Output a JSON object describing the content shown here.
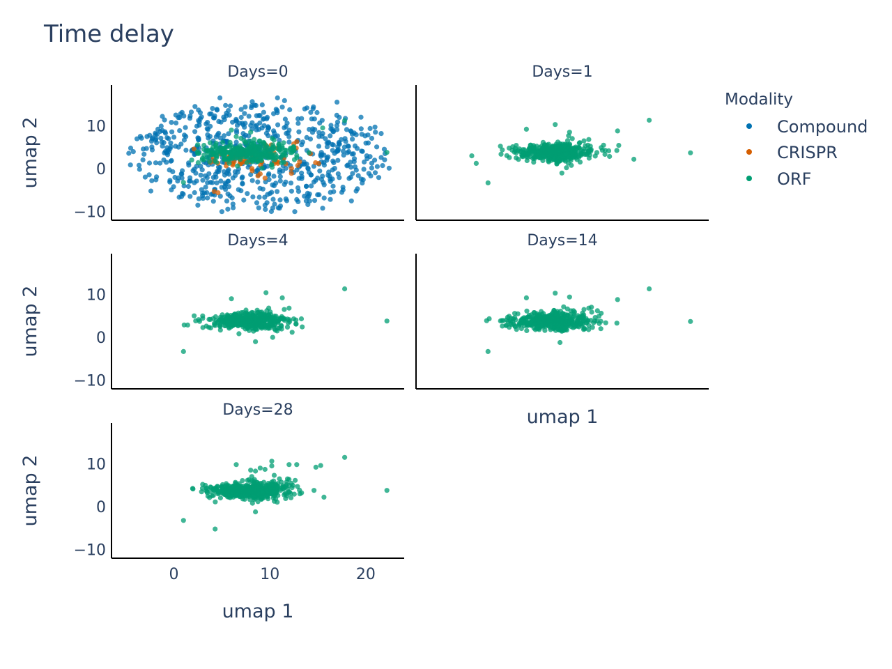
{
  "chart_data": {
    "type": "scatter",
    "title": "Time delay",
    "xlabel": "umap 1",
    "ylabel": "umap 2",
    "xlim": [
      -6.5,
      24
    ],
    "ylim": [
      -12,
      19.5
    ],
    "xticks": [
      0,
      10,
      20
    ],
    "yticks": [
      10,
      0,
      -10
    ],
    "tick_labels": {
      "x": [
        "0",
        "10",
        "20"
      ],
      "y": [
        "10",
        "0",
        "−10"
      ]
    },
    "legend": {
      "title": "Modality",
      "placement": "top-right",
      "entries": [
        {
          "name": "Compound",
          "color": "#0072b2"
        },
        {
          "name": "CRISPR",
          "color": "#d55e00"
        },
        {
          "name": "ORF",
          "color": "#009e73"
        }
      ]
    },
    "panels": [
      {
        "title": "Days=0",
        "series": [
          {
            "name": "Compound",
            "cloud": {
              "cx": 9,
              "cy": 3,
              "sx": 6.5,
              "sy": 5.5,
              "n": 650
            },
            "points": [
              [
                -4.5,
                4.8
              ],
              [
                -2.8,
                7.5
              ],
              [
                -2.2,
                7.2
              ],
              [
                -1.2,
                12.2
              ],
              [
                0.2,
                12.5
              ],
              [
                2.2,
                14.5
              ],
              [
                4.8,
                16.5
              ],
              [
                10.8,
                16.5
              ],
              [
                14.5,
                14
              ],
              [
                17,
                15.5
              ],
              [
                19.5,
                12
              ],
              [
                21,
                8.5
              ],
              [
                21.6,
                8.2
              ],
              [
                22,
                3.5
              ],
              [
                21.2,
                0.5
              ],
              [
                -2.3,
                -2.8
              ],
              [
                -2.4,
                -5.2
              ],
              [
                0.8,
                -6.5
              ],
              [
                2.5,
                -8.5
              ],
              [
                5,
                -10
              ],
              [
                9.5,
                -8.5
              ],
              [
                12.6,
                -10
              ],
              [
                15.5,
                -9.2
              ],
              [
                17.5,
                -5.5
              ],
              [
                19,
                -5.2
              ],
              [
                18.5,
                -7.5
              ]
            ]
          },
          {
            "name": "CRISPR",
            "cloud": {
              "cx": 7.8,
              "cy": 2.2,
              "sx": 2.5,
              "sy": 1.6,
              "n": 70
            },
            "points": [
              [
                4.2,
                -5.3
              ],
              [
                4.6,
                -5.6
              ],
              [
                9,
                -1.2
              ],
              [
                9.5,
                -2.2
              ],
              [
                12.5,
                5.8
              ],
              [
                12.8,
                6.3
              ],
              [
                3.8,
                1.5
              ],
              [
                2.1,
                4.6
              ]
            ]
          },
          {
            "name": "ORF",
            "cloud": {
              "cx": 7.8,
              "cy": 3.8,
              "sx": 2.4,
              "sy": 1.5,
              "n": 300
            },
            "points": [
              [
                6,
                9
              ],
              [
                8,
                8.5
              ],
              [
                12.5,
                5
              ],
              [
                15.5,
                9.5
              ],
              [
                17.8,
                11.2
              ],
              [
                22.2,
                3.8
              ],
              [
                1,
                -3.2
              ],
              [
                6.5,
                7.5
              ]
            ]
          }
        ]
      },
      {
        "title": "Days=1",
        "series": [
          {
            "name": "ORF",
            "cloud": {
              "cx": 8,
              "cy": 3.8,
              "sx": 2.1,
              "sy": 1.3,
              "n": 420
            },
            "points": [
              [
                5,
                9.2
              ],
              [
                8,
                10.3
              ],
              [
                9.5,
                8.5
              ],
              [
                11,
                6.5
              ],
              [
                11.5,
                6.8
              ],
              [
                14.5,
                8.8
              ],
              [
                17.8,
                11.3
              ],
              [
                16.2,
                2.2
              ],
              [
                22.1,
                3.7
              ],
              [
                1,
                -3.3
              ],
              [
                8.7,
                -1
              ],
              [
                3.2,
                4.8
              ],
              [
                10.5,
                4.9
              ]
            ]
          }
        ]
      },
      {
        "title": "Days=4",
        "series": [
          {
            "name": "ORF",
            "cloud": {
              "cx": 7.8,
              "cy": 3.8,
              "sx": 2.1,
              "sy": 1.3,
              "n": 420
            },
            "points": [
              [
                6,
                9
              ],
              [
                9.6,
                10.4
              ],
              [
                11.3,
                9.2
              ],
              [
                11.5,
                6.5
              ],
              [
                12,
                6.8
              ],
              [
                17.8,
                11.3
              ],
              [
                22.2,
                3.8
              ],
              [
                1,
                -3.3
              ],
              [
                8.5,
                -1
              ],
              [
                10.3,
                0
              ],
              [
                3,
                5
              ]
            ]
          }
        ]
      },
      {
        "title": "Days=14",
        "series": [
          {
            "name": "ORF",
            "cloud": {
              "cx": 7.8,
              "cy": 3.8,
              "sx": 2.1,
              "sy": 1.3,
              "n": 420
            },
            "points": [
              [
                5,
                9.2
              ],
              [
                8,
                10.3
              ],
              [
                9.5,
                9.4
              ],
              [
                11,
                6.5
              ],
              [
                11.5,
                6.8
              ],
              [
                14.5,
                8.8
              ],
              [
                17.8,
                11.3
              ],
              [
                22.1,
                3.7
              ],
              [
                1,
                -3.3
              ],
              [
                8.5,
                -1.2
              ],
              [
                3.2,
                4.9
              ],
              [
                10.8,
                5
              ]
            ]
          }
        ]
      },
      {
        "title": "Days=28",
        "series": [
          {
            "name": "ORF",
            "cloud": {
              "cx": 7.8,
              "cy": 3.8,
              "sx": 2.1,
              "sy": 1.3,
              "n": 450
            },
            "points": [
              [
                6.5,
                9.8
              ],
              [
                8,
                8.5
              ],
              [
                8.5,
                8.3
              ],
              [
                9,
                9
              ],
              [
                9.5,
                8.7
              ],
              [
                10.2,
                9.5
              ],
              [
                10.2,
                10.6
              ],
              [
                12,
                9.8
              ],
              [
                12.8,
                9.8
              ],
              [
                14.8,
                9.2
              ],
              [
                15.3,
                9.6
              ],
              [
                17.8,
                11.5
              ],
              [
                22.2,
                3.8
              ],
              [
                11,
                6.5
              ],
              [
                14.6,
                3.8
              ],
              [
                1,
                -3.2
              ],
              [
                4.3,
                -5.2
              ],
              [
                8.5,
                -1.2
              ],
              [
                3,
                5.2
              ]
            ]
          }
        ]
      }
    ]
  }
}
